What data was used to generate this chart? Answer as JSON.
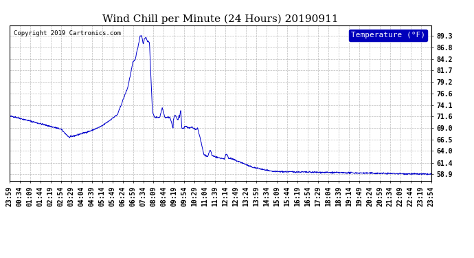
{
  "title": "Wind Chill per Minute (24 Hours) 20190911",
  "copyright_text": "Copyright 2019 Cartronics.com",
  "legend_label": "Temperature (°F)",
  "line_color": "#0000cc",
  "background_color": "#ffffff",
  "grid_color": "#aaaaaa",
  "ylim": [
    57.5,
    91.5
  ],
  "yticks": [
    58.9,
    61.4,
    64.0,
    66.5,
    69.0,
    71.6,
    74.1,
    76.6,
    79.2,
    81.7,
    84.2,
    86.8,
    89.3
  ],
  "xtick_labels": [
    "23:59",
    "00:34",
    "01:09",
    "01:44",
    "02:19",
    "02:54",
    "03:29",
    "04:04",
    "04:39",
    "05:14",
    "05:49",
    "06:24",
    "06:59",
    "07:34",
    "08:09",
    "08:44",
    "09:19",
    "09:54",
    "10:29",
    "11:04",
    "11:39",
    "12:14",
    "12:49",
    "13:24",
    "13:59",
    "14:34",
    "15:09",
    "15:44",
    "16:19",
    "16:54",
    "17:29",
    "18:04",
    "18:39",
    "19:14",
    "19:49",
    "20:24",
    "20:59",
    "21:34",
    "22:09",
    "22:44",
    "23:19",
    "23:54"
  ],
  "title_fontsize": 11,
  "tick_fontsize": 7,
  "legend_fontsize": 8
}
